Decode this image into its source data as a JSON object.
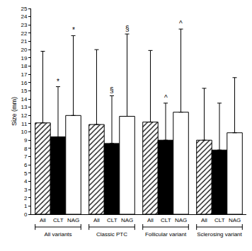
{
  "chart_data": {
    "type": "bar",
    "y_label": "Size (mm)",
    "categories": [
      "All variants",
      "Classic PTC",
      "Follicular variant",
      "Sclerosing variant"
    ],
    "series": [
      {
        "name": "All",
        "color": "#ffffff",
        "marker": "hatch",
        "values": [
          11.1,
          10.9,
          11.2,
          9.0
        ],
        "errors": [
          8.7,
          9.1,
          8.7,
          6.3
        ]
      },
      {
        "name": "CLT",
        "color": "#000000",
        "values": [
          9.4,
          8.6,
          9.0,
          7.8
        ],
        "errors": [
          6.1,
          5.8,
          4.5,
          5.7
        ]
      },
      {
        "name": "NAG",
        "color": "#ffffff",
        "values": [
          12.0,
          11.9,
          12.4,
          9.9
        ],
        "errors": [
          9.7,
          10.0,
          10.1,
          6.7
        ]
      }
    ],
    "annotations": [
      {
        "category": "All variants",
        "series": "CLT",
        "text": "*"
      },
      {
        "category": "All variants",
        "series": "NAG",
        "text": "*"
      },
      {
        "category": "Classic PTC",
        "series": "CLT",
        "text": "§"
      },
      {
        "category": "Classic PTC",
        "series": "NAG",
        "text": "§"
      },
      {
        "category": "Follicular variant",
        "series": "CLT",
        "text": "^"
      },
      {
        "category": "Follicular variant",
        "series": "NAG",
        "text": "^"
      }
    ],
    "ylim": [
      0,
      25
    ],
    "yticks": [
      0,
      1,
      2,
      3,
      4,
      5,
      6,
      7,
      8,
      9,
      10,
      11,
      12,
      13,
      14,
      15,
      16,
      17,
      18,
      19,
      20,
      21,
      22,
      23,
      24,
      25
    ],
    "grid": false
  }
}
